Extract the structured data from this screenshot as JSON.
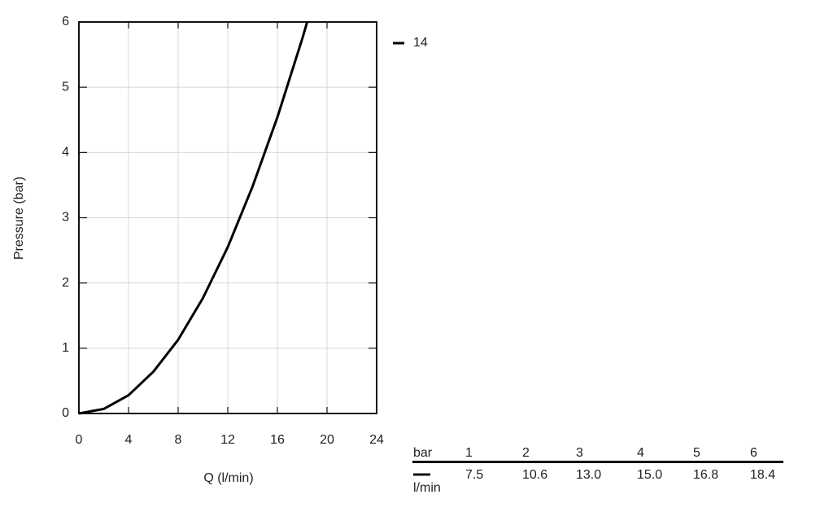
{
  "chart_data": {
    "type": "line",
    "x_label": "Q (l/min)",
    "y_label": "Pressure (bar)",
    "x": [
      0,
      2,
      4,
      6,
      8,
      10,
      12,
      14,
      16,
      18,
      18.4
    ],
    "series": [
      {
        "name": "14",
        "color": "#000000",
        "values": [
          0,
          0.07,
          0.28,
          0.64,
          1.13,
          1.77,
          2.55,
          3.48,
          4.54,
          5.74,
          6.0
        ]
      }
    ],
    "xlim": [
      0,
      24
    ],
    "xticks": [
      0,
      4,
      8,
      12,
      16,
      20,
      24
    ],
    "ylim": [
      0,
      6
    ],
    "yticks": [
      0,
      1,
      2,
      3,
      4,
      5,
      6
    ],
    "grid": true,
    "legend": "top-right-outside"
  },
  "table": {
    "rows": [
      [
        "bar",
        "1",
        "2",
        "3",
        "4",
        "5",
        "6"
      ],
      [
        "l/min",
        "7.5",
        "10.6",
        "13.0",
        "15.0",
        "16.8",
        "18.4"
      ]
    ]
  }
}
